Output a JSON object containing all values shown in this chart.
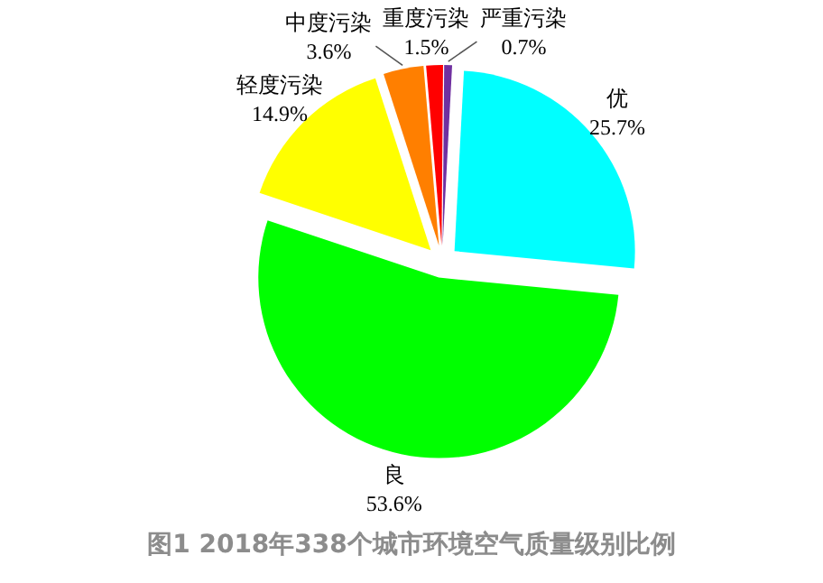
{
  "chart_data": {
    "type": "pie",
    "title": "图1  2018年338个城市环境空气质量级别比例",
    "categories": [
      "优",
      "良",
      "轻度污染",
      "中度污染",
      "重度污染",
      "严重污染"
    ],
    "values": [
      25.7,
      53.6,
      14.9,
      3.6,
      1.5,
      0.7
    ],
    "value_labels": [
      "25.7%",
      "53.6%",
      "14.9%",
      "3.6%",
      "1.5%",
      "0.7%"
    ],
    "colors": [
      "#00ffff",
      "#00ff00",
      "#ffff00",
      "#ff7f00",
      "#ff0000",
      "#7030a0"
    ],
    "legend": false
  }
}
